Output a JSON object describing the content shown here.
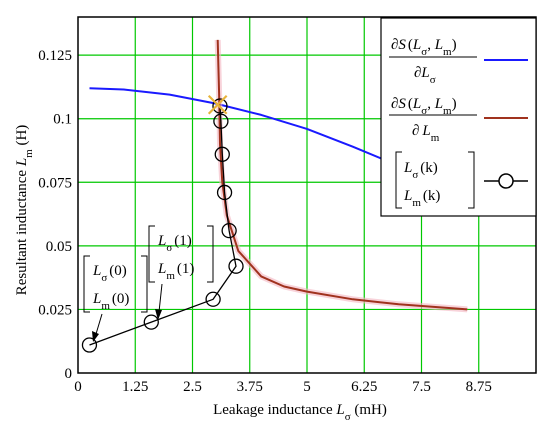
{
  "chart_data": {
    "type": "line",
    "xlabel_main": "Leakage inductance ",
    "xlabel_symbol": "L",
    "xlabel_sub": "σ",
    "xlabel_unit": " (mH)",
    "ylabel_main": "Resultant inductance ",
    "ylabel_symbol": "L",
    "ylabel_sub": "m",
    "ylabel_unit": " (H)",
    "xlim": [
      0,
      10
    ],
    "ylim": [
      0,
      0.14
    ],
    "x_ticks": [
      0,
      1.25,
      2.5,
      3.75,
      5,
      6.25,
      7.5,
      8.75
    ],
    "x_tick_labels": [
      "0",
      "1.25",
      "2.5",
      "3.75",
      "5",
      "6.25",
      "7.5",
      "8.75"
    ],
    "y_ticks": [
      0,
      0.025,
      0.05,
      0.075,
      0.1,
      0.125
    ],
    "y_tick_labels": [
      "0",
      "0.025",
      "0.05",
      "0.075",
      "0.1",
      "0.125"
    ],
    "grid": true,
    "grid_color": "#00c800",
    "legend_position": "top-right",
    "series": [
      {
        "legend": {
          "num_pre": "∂S",
          "args_a": "L",
          "sub_a": "σ",
          "args_b": "L",
          "sub_b": "m",
          "den_pre": "∂",
          "den_sym": "L",
          "den_sub": "σ"
        },
        "color": "#1a1aff",
        "x": [
          0.25,
          1.0,
          2.0,
          3.0,
          4.0,
          5.0,
          6.0,
          6.8
        ],
        "y": [
          0.112,
          0.1115,
          0.1095,
          0.106,
          0.1015,
          0.096,
          0.089,
          0.083
        ]
      },
      {
        "legend": {
          "num_pre": "∂S",
          "args_a": "L",
          "sub_a": "σ",
          "args_b": "L",
          "sub_b": "m",
          "den_pre": "∂",
          "den_sym": "L",
          "den_sub": "m"
        },
        "color": "#a0321e",
        "x": [
          3.05,
          3.08,
          3.1,
          3.15,
          3.25,
          3.5,
          4.0,
          4.5,
          5.0,
          6.0,
          7.0,
          8.5
        ],
        "y": [
          0.131,
          0.11,
          0.09,
          0.075,
          0.062,
          0.048,
          0.038,
          0.034,
          0.032,
          0.029,
          0.027,
          0.025
        ]
      },
      {
        "legend": {
          "top_sym": "L",
          "top_sub": "σ",
          "top_arg": "(k)",
          "bot_sym": "L",
          "bot_sub": "m",
          "bot_arg": "(k)"
        },
        "color": "#000000",
        "marker": "circle",
        "x": [
          0.25,
          1.6,
          2.95,
          3.45,
          3.3,
          3.2,
          3.15,
          3.12,
          3.1
        ],
        "y": [
          0.011,
          0.02,
          0.029,
          0.042,
          0.056,
          0.071,
          0.086,
          0.099,
          0.105
        ]
      }
    ],
    "annotations": [
      {
        "top_sym": "L",
        "top_sub": "σ",
        "top_arg": "(0)",
        "bot_sym": "L",
        "bot_sub": "m",
        "bot_arg": "(0)"
      },
      {
        "top_sym": "L",
        "top_sub": "σ",
        "top_arg": "(1)",
        "bot_sym": "L",
        "bot_sub": "m",
        "bot_arg": "(1)"
      }
    ],
    "intersection": {
      "x": 3.05,
      "y": 0.1055,
      "color": "#e8b33a"
    }
  }
}
